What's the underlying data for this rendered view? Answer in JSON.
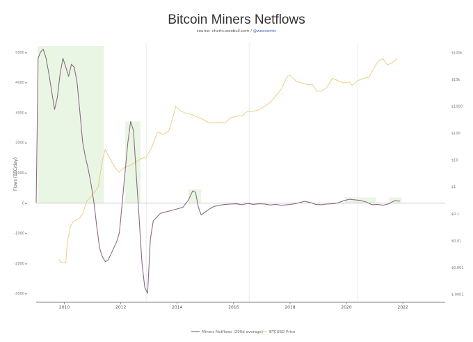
{
  "chart_data": {
    "type": "line",
    "title": "Bitcoin Miners Netflows",
    "subtitle": "source: charts.woobull.com / ",
    "subtitle_handle": "@woonomic",
    "ylabel_left": "Flows (BTC/day)",
    "ylabel_right": "",
    "legend_position": "bottom",
    "grid": true,
    "x_ticks": [
      "2010",
      "2012",
      "2014",
      "2016",
      "2018",
      "2020",
      "2022"
    ],
    "xlim": [
      2009.0,
      2023.5
    ],
    "y_left_ticks": [
      {
        "value": 5000,
        "label": "5000 ▸"
      },
      {
        "value": 4000,
        "label": "4000 ▸"
      },
      {
        "value": 3000,
        "label": "3000 ▸"
      },
      {
        "value": 2000,
        "label": "2000 ▸"
      },
      {
        "value": 1000,
        "label": "1000 ▸"
      },
      {
        "value": 0,
        "label": "0 ▸"
      },
      {
        "value": -1000,
        "label": "-1000 ▸"
      },
      {
        "value": -2000,
        "label": "-2000 ▸"
      },
      {
        "value": -3000,
        "label": "-3000 ▸"
      }
    ],
    "ylim_left": [
      -3300,
      5300
    ],
    "y_right_ticks": [
      {
        "value": 100000,
        "label": "$100k"
      },
      {
        "value": 10000,
        "label": "$10k"
      },
      {
        "value": 1000,
        "label": "$1000"
      },
      {
        "value": 100,
        "label": "$100"
      },
      {
        "value": 10,
        "label": "$10"
      },
      {
        "value": 1,
        "label": "$1"
      },
      {
        "value": 0.1,
        "label": "$0.1"
      },
      {
        "value": 0.01,
        "label": "$0.01"
      },
      {
        "value": 0.001,
        "label": "$0.001"
      },
      {
        "value": 0.0001,
        "label": "$.0001"
      }
    ],
    "y_right_scale": "log",
    "y_right_log_range": [
      -4.3,
      5.35
    ],
    "shaded_regions": [
      {
        "x0": 2009.05,
        "x1": 2011.4,
        "color": "#eaf6e4"
      },
      {
        "x0": 2012.15,
        "x1": 2012.7,
        "color": "#eaf6e4"
      },
      {
        "x0": 2014.4,
        "x1": 2014.85,
        "color": "#eaf6e4"
      },
      {
        "x0": 2019.95,
        "x1": 2021.05,
        "color": "#eaf6e4"
      },
      {
        "x0": 2021.5,
        "x1": 2021.95,
        "color": "#eaf6e4"
      }
    ],
    "vlines": [
      2012.9,
      2016.55,
      2020.4
    ],
    "series": [
      {
        "name": "Miners Netflows (200d average)",
        "axis": "left",
        "color": "#8a6b85",
        "x": [
          2009.0,
          2009.07,
          2009.15,
          2009.25,
          2009.35,
          2009.45,
          2009.55,
          2009.65,
          2009.75,
          2009.85,
          2009.95,
          2010.05,
          2010.15,
          2010.25,
          2010.35,
          2010.45,
          2010.55,
          2010.65,
          2010.75,
          2010.85,
          2010.95,
          2011.05,
          2011.15,
          2011.25,
          2011.35,
          2011.45,
          2011.55,
          2011.65,
          2011.75,
          2011.85,
          2011.95,
          2012.05,
          2012.15,
          2012.25,
          2012.35,
          2012.45,
          2012.55,
          2012.65,
          2012.75,
          2012.85,
          2012.95,
          2013.05,
          2013.15,
          2013.25,
          2013.4,
          2013.6,
          2013.8,
          2014.0,
          2014.2,
          2014.4,
          2014.55,
          2014.65,
          2014.75,
          2014.85,
          2015.0,
          2015.15,
          2015.3,
          2015.5,
          2015.7,
          2015.9,
          2016.1,
          2016.3,
          2016.5,
          2016.7,
          2016.9,
          2017.1,
          2017.3,
          2017.5,
          2017.7,
          2017.9,
          2018.1,
          2018.3,
          2018.5,
          2018.7,
          2018.9,
          2019.1,
          2019.3,
          2019.5,
          2019.7,
          2019.9,
          2020.1,
          2020.3,
          2020.5,
          2020.7,
          2020.9,
          2021.1,
          2021.3,
          2021.5,
          2021.7,
          2021.9
        ],
        "y": [
          0,
          4800,
          5000,
          5100,
          4800,
          4300,
          3700,
          3100,
          3500,
          4300,
          4800,
          4500,
          4200,
          4600,
          4500,
          4000,
          3000,
          2000,
          1500,
          1100,
          600,
          0,
          -800,
          -1500,
          -1800,
          -1950,
          -1900,
          -1700,
          -1500,
          -1300,
          -1000,
          0,
          1000,
          2000,
          2700,
          2400,
          900,
          -500,
          -2000,
          -2800,
          -3000,
          -1200,
          -600,
          -500,
          -350,
          -300,
          -250,
          -200,
          -150,
          100,
          400,
          350,
          -150,
          -400,
          -300,
          -200,
          -120,
          -80,
          -50,
          -40,
          -30,
          -60,
          -20,
          -50,
          -30,
          -40,
          -70,
          -50,
          -80,
          -60,
          -40,
          0,
          50,
          20,
          -50,
          -60,
          -40,
          -30,
          0,
          70,
          120,
          100,
          80,
          30,
          -60,
          -50,
          -80,
          -30,
          70,
          60
        ]
      },
      {
        "name": "BTCUSD Price",
        "axis": "right",
        "color": "#eec77a",
        "x": [
          2009.8,
          2009.9,
          2010.0,
          2010.05,
          2010.1,
          2010.2,
          2010.3,
          2010.45,
          2010.55,
          2010.65,
          2010.8,
          2011.0,
          2011.2,
          2011.35,
          2011.45,
          2011.6,
          2011.8,
          2011.95,
          2012.1,
          2012.3,
          2012.5,
          2012.7,
          2012.9,
          2013.1,
          2013.3,
          2013.5,
          2013.7,
          2013.85,
          2013.95,
          2014.1,
          2014.3,
          2014.5,
          2014.7,
          2014.9,
          2015.1,
          2015.3,
          2015.5,
          2015.7,
          2015.9,
          2016.1,
          2016.3,
          2016.5,
          2016.7,
          2016.9,
          2017.1,
          2017.3,
          2017.5,
          2017.7,
          2017.9,
          2018.0,
          2018.2,
          2018.4,
          2018.6,
          2018.8,
          2018.95,
          2019.1,
          2019.3,
          2019.5,
          2019.7,
          2019.9,
          2020.1,
          2020.2,
          2020.4,
          2020.6,
          2020.8,
          2021.0,
          2021.15,
          2021.3,
          2021.45,
          2021.6,
          2021.8
        ],
        "y": [
          0.002,
          0.0015,
          0.0015,
          0.0015,
          0.008,
          0.03,
          0.05,
          0.06,
          0.07,
          0.1,
          0.3,
          0.5,
          1.0,
          10,
          25,
          12,
          5,
          3.5,
          5,
          6,
          8,
          11,
          13,
          30,
          110,
          90,
          120,
          400,
          1000,
          700,
          550,
          500,
          400,
          330,
          250,
          240,
          260,
          240,
          380,
          420,
          450,
          650,
          650,
          750,
          1000,
          1400,
          2500,
          4500,
          13000,
          14000,
          9000,
          7500,
          6500,
          6300,
          3700,
          3600,
          5000,
          11000,
          9000,
          7500,
          8000,
          6000,
          9000,
          11000,
          12000,
          30000,
          50000,
          58000,
          35000,
          40000,
          60000
        ]
      }
    ]
  }
}
